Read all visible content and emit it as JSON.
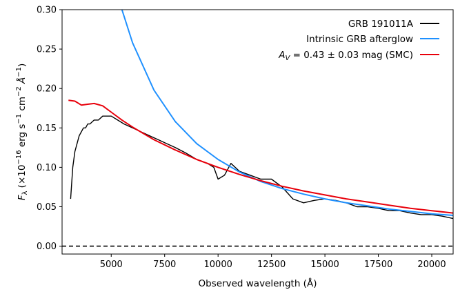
{
  "chart_data": {
    "type": "line",
    "xlabel": "Observed wavelength (Å)",
    "ylabel_parts": {
      "symbol": "F",
      "symbol_sub": "λ",
      "open": " (×10",
      "exp1": "−16",
      "middle": " erg s",
      "exp2": "−1",
      "middle2": " cm",
      "exp3": "−2",
      "middle3": " Å",
      "exp4": "−1",
      "close": ")"
    },
    "xlim": [
      2700,
      21000
    ],
    "ylim": [
      -0.01,
      0.3
    ],
    "x_ticks": [
      5000,
      7500,
      10000,
      12500,
      15000,
      17500,
      20000
    ],
    "y_ticks": [
      0.0,
      0.05,
      0.1,
      0.15,
      0.2,
      0.25,
      0.3
    ],
    "x_tick_labels": [
      "5000",
      "7500",
      "10000",
      "12500",
      "15000",
      "17500",
      "20000"
    ],
    "y_tick_labels": [
      "0.00",
      "0.05",
      "0.10",
      "0.15",
      "0.20",
      "0.25",
      "0.30"
    ],
    "grid": false,
    "legend_position": "top-right",
    "legend": [
      {
        "label": "GRB 191011A",
        "color": "#000000"
      },
      {
        "label": "Intrinsic GRB afterglow",
        "color": "#1e90ff"
      },
      {
        "label_parts": {
          "a": "A",
          "sub": "V",
          "rest": " = 0.43 ± 0.03 mag (SMC)"
        },
        "color": "#e8000b"
      }
    ],
    "series": [
      {
        "name": "GRB 191011A",
        "color": "#000000",
        "x": [
          3100,
          3200,
          3300,
          3400,
          3500,
          3600,
          3700,
          3800,
          3900,
          4000,
          4200,
          4400,
          4600,
          4800,
          5000,
          5300,
          5600,
          6000,
          6400,
          6800,
          7200,
          7600,
          8000,
          8500,
          9000,
          9500,
          9800,
          10000,
          10300,
          10600,
          11000,
          11500,
          12000,
          12500,
          13000,
          13500,
          14000,
          14500,
          15000,
          15500,
          16000,
          16500,
          17000,
          17500,
          18000,
          18500,
          19000,
          19500,
          20000,
          20500,
          21000
        ],
        "y": [
          0.06,
          0.1,
          0.12,
          0.13,
          0.14,
          0.145,
          0.15,
          0.15,
          0.155,
          0.155,
          0.16,
          0.16,
          0.165,
          0.165,
          0.165,
          0.16,
          0.155,
          0.15,
          0.145,
          0.14,
          0.135,
          0.13,
          0.125,
          0.118,
          0.11,
          0.105,
          0.1,
          0.085,
          0.09,
          0.105,
          0.095,
          0.09,
          0.085,
          0.085,
          0.075,
          0.06,
          0.055,
          0.058,
          0.06,
          0.058,
          0.055,
          0.05,
          0.05,
          0.048,
          0.045,
          0.045,
          0.042,
          0.04,
          0.04,
          0.038,
          0.035
        ]
      },
      {
        "name": "Intrinsic GRB afterglow",
        "color": "#1e90ff",
        "x": [
          5500,
          6000,
          7000,
          8000,
          9000,
          10000,
          11000,
          12000,
          13000,
          14000,
          15000,
          16000,
          17000,
          18000,
          19000,
          20000,
          21000
        ],
        "y": [
          0.3,
          0.258,
          0.198,
          0.158,
          0.13,
          0.11,
          0.094,
          0.082,
          0.073,
          0.066,
          0.06,
          0.055,
          0.051,
          0.047,
          0.044,
          0.041,
          0.039
        ]
      },
      {
        "name": "A_V = 0.43 ± 0.03 mag (SMC)",
        "color": "#e8000b",
        "x": [
          3000,
          3300,
          3600,
          3900,
          4200,
          4600,
          5000,
          5500,
          6000,
          7000,
          8000,
          9000,
          10000,
          11000,
          12000,
          13000,
          14000,
          15000,
          16000,
          17000,
          18000,
          19000,
          20000,
          21000
        ],
        "y": [
          0.185,
          0.184,
          0.179,
          0.18,
          0.181,
          0.178,
          0.17,
          0.16,
          0.151,
          0.135,
          0.122,
          0.11,
          0.1,
          0.091,
          0.083,
          0.076,
          0.07,
          0.065,
          0.06,
          0.056,
          0.052,
          0.048,
          0.045,
          0.042
        ]
      }
    ],
    "reference_line": {
      "y": 0.0,
      "style": "dashed",
      "color": "#000000"
    }
  }
}
